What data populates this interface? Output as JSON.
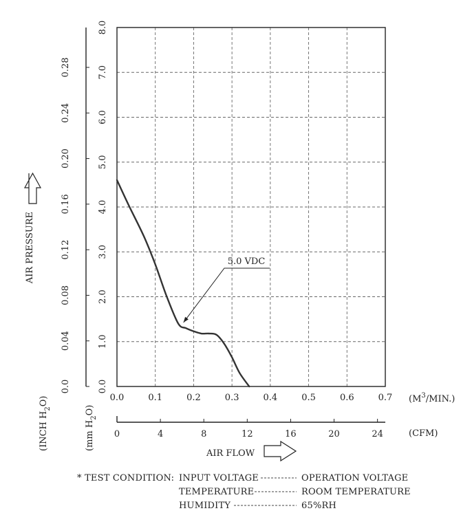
{
  "chart_data": {
    "type": "line",
    "title": "",
    "xlabel": "AIR FLOW",
    "ylabel": "AIR PRESSURE",
    "x_primary": {
      "unit": "(M3/MIN.)",
      "unit_parts": {
        "base": "(M",
        "sup": "3",
        "rest": "/MIN.)"
      },
      "range": [
        0.0,
        0.7
      ],
      "ticks": [
        "0.0",
        "0.1",
        "0.2",
        "0.3",
        "0.4",
        "0.5",
        "0.6",
        "0.7"
      ]
    },
    "x_secondary": {
      "unit": "(CFM)",
      "range": [
        0,
        24.72
      ],
      "ticks": [
        "0",
        "4",
        "8",
        "12",
        "16",
        "20",
        "24"
      ]
    },
    "y_primary": {
      "unit": "(mm H2O)",
      "unit_parts": {
        "base": "(mm H",
        "sub": "2",
        "rest": "O)"
      },
      "range": [
        0.0,
        8.0
      ],
      "ticks": [
        "0.0",
        "1.0",
        "2.0",
        "3.0",
        "4.0",
        "5.0",
        "6.0",
        "7.0",
        "8.0"
      ]
    },
    "y_secondary": {
      "unit": "(INCH H2O)",
      "unit_parts": {
        "base": "(INCH H",
        "sub": "2",
        "rest": "O)"
      },
      "range": [
        0.0,
        0.315
      ],
      "ticks": [
        "0.0",
        "0.04",
        "0.08",
        "0.12",
        "0.16",
        "0.20",
        "0.24",
        "0.28"
      ]
    },
    "grid": true,
    "series": [
      {
        "name": "5.0 VDC",
        "x": [
          0.0,
          0.03,
          0.07,
          0.1,
          0.13,
          0.16,
          0.18,
          0.2,
          0.22,
          0.24,
          0.26,
          0.28,
          0.3,
          0.32,
          0.345
        ],
        "y": [
          4.6,
          4.05,
          3.35,
          2.72,
          2.0,
          1.4,
          1.3,
          1.23,
          1.18,
          1.18,
          1.15,
          0.95,
          0.65,
          0.3,
          0.0
        ]
      }
    ],
    "annotation": {
      "text": "5.0 VDC",
      "x": 0.17,
      "y": 1.35
    }
  },
  "test_condition": {
    "prefix": "* TEST CONDITION:",
    "rows": [
      {
        "label": "INPUT VOLTAGE",
        "value": "OPERATION VOLTAGE"
      },
      {
        "label": "TEMPERATURE",
        "value": "ROOM TEMPERATURE"
      },
      {
        "label": "HUMIDITY",
        "value": "65%RH"
      }
    ]
  }
}
